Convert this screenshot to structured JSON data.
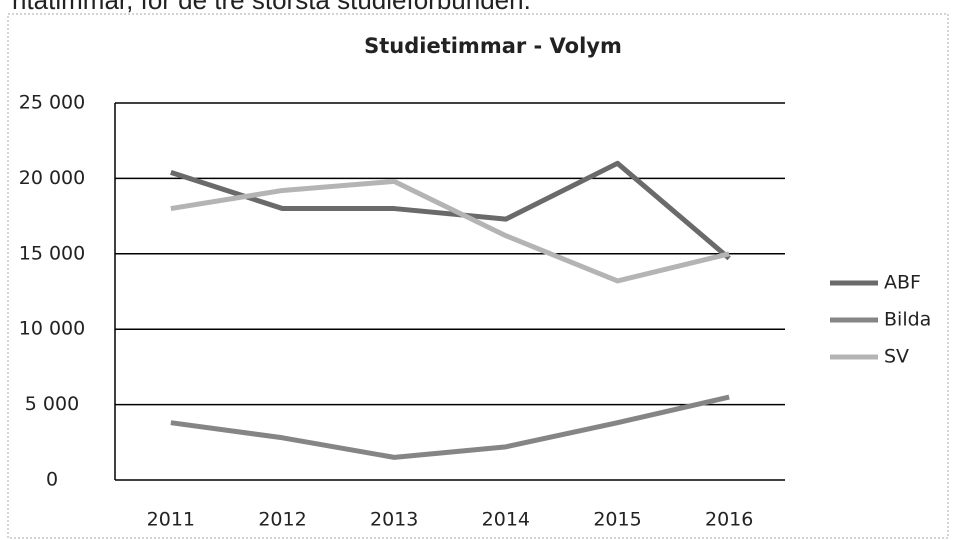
{
  "header_text": "ntatimmar, för de tre största studieförbunden.",
  "chart_data": {
    "type": "line",
    "title": "Studietimmar - Volym",
    "categories": [
      "2011",
      "2012",
      "2013",
      "2014",
      "2015",
      "2016"
    ],
    "series": [
      {
        "name": "ABF",
        "color": "#6a6a6a",
        "values": [
          20400,
          18000,
          18000,
          17300,
          21000,
          14700
        ]
      },
      {
        "name": "Bilda",
        "color": "#858585",
        "values": [
          3800,
          2800,
          1500,
          2200,
          3800,
          5500
        ]
      },
      {
        "name": "SV",
        "color": "#b4b4b4",
        "values": [
          18000,
          19200,
          19800,
          16200,
          13200,
          15000
        ]
      }
    ],
    "ylim": [
      0,
      25000
    ],
    "yticks": [
      0,
      {
        "value": 5000,
        "label": "5 000"
      },
      {
        "value": 10000,
        "label": "10 000"
      },
      {
        "value": 15000,
        "label": "15 000"
      },
      {
        "value": 20000,
        "label": "20 000"
      },
      {
        "value": 25000,
        "label": "25 000"
      }
    ],
    "grid": true,
    "legend": "right"
  }
}
